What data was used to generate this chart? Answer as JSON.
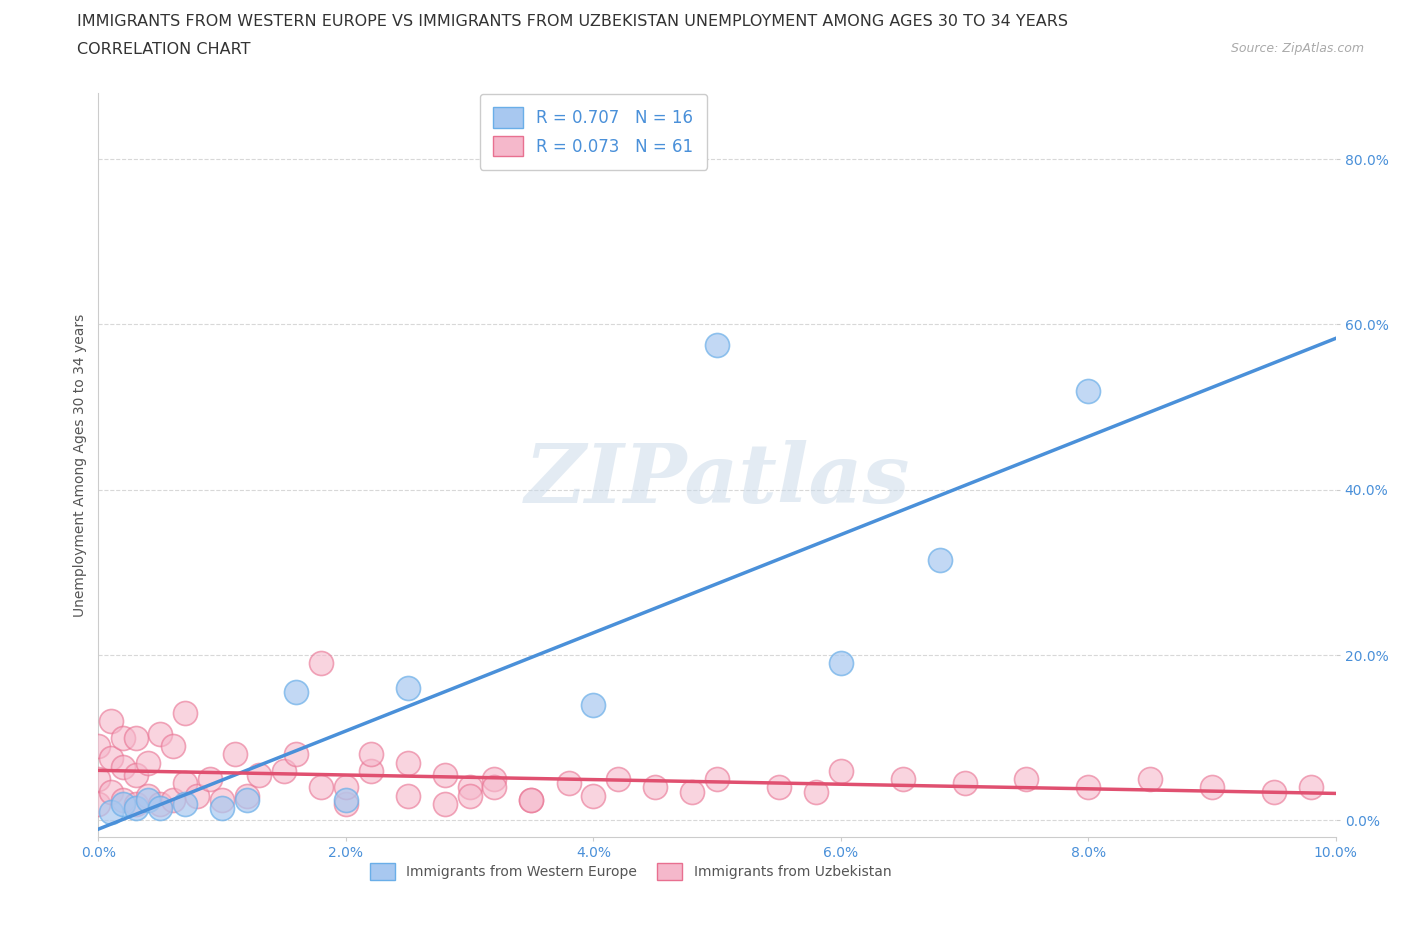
{
  "title_line1": "IMMIGRANTS FROM WESTERN EUROPE VS IMMIGRANTS FROM UZBEKISTAN UNEMPLOYMENT AMONG AGES 30 TO 34 YEARS",
  "title_line2": "CORRELATION CHART",
  "source": "Source: ZipAtlas.com",
  "ylabel": "Unemployment Among Ages 30 to 34 years",
  "watermark": "ZIPatlas",
  "blue_R": 0.707,
  "blue_N": 16,
  "pink_R": 0.073,
  "pink_N": 61,
  "blue_color": "#a8c8f0",
  "pink_color": "#f5b8cb",
  "blue_edge_color": "#6aaee8",
  "pink_edge_color": "#e87090",
  "blue_line_color": "#4a90d9",
  "pink_line_color": "#e05070",
  "background_color": "#ffffff",
  "grid_color": "#d8d8d8",
  "xlim": [
    0.0,
    0.1
  ],
  "ylim": [
    -0.02,
    0.88
  ],
  "xtick_vals": [
    0.0,
    0.02,
    0.04,
    0.06,
    0.08,
    0.1
  ],
  "xtick_labels": [
    "0.0%",
    "2.0%",
    "4.0%",
    "6.0%",
    "8.0%",
    "10.0%"
  ],
  "ytick_vals": [
    0.0,
    0.2,
    0.4,
    0.6,
    0.8
  ],
  "ytick_labels": [
    "0.0%",
    "20.0%",
    "40.0%",
    "60.0%",
    "80.0%"
  ],
  "blue_scatter_x": [
    0.001,
    0.002,
    0.003,
    0.004,
    0.005,
    0.007,
    0.01,
    0.012,
    0.016,
    0.02,
    0.025,
    0.04,
    0.05,
    0.06,
    0.068,
    0.08
  ],
  "blue_scatter_y": [
    0.01,
    0.02,
    0.015,
    0.025,
    0.015,
    0.02,
    0.015,
    0.025,
    0.155,
    0.025,
    0.16,
    0.14,
    0.575,
    0.19,
    0.315,
    0.52
  ],
  "pink_scatter_x": [
    0.0,
    0.0,
    0.0,
    0.001,
    0.001,
    0.001,
    0.002,
    0.002,
    0.002,
    0.003,
    0.003,
    0.003,
    0.004,
    0.004,
    0.005,
    0.005,
    0.006,
    0.006,
    0.007,
    0.007,
    0.008,
    0.009,
    0.01,
    0.011,
    0.012,
    0.013,
    0.015,
    0.016,
    0.018,
    0.02,
    0.022,
    0.025,
    0.028,
    0.03,
    0.032,
    0.035,
    0.038,
    0.04,
    0.042,
    0.045,
    0.048,
    0.05,
    0.055,
    0.058,
    0.06,
    0.065,
    0.07,
    0.075,
    0.08,
    0.085,
    0.09,
    0.095,
    0.098,
    0.022,
    0.028,
    0.03,
    0.032,
    0.018,
    0.02,
    0.025,
    0.035
  ],
  "pink_scatter_y": [
    0.02,
    0.05,
    0.09,
    0.035,
    0.075,
    0.12,
    0.025,
    0.065,
    0.1,
    0.02,
    0.055,
    0.1,
    0.03,
    0.07,
    0.02,
    0.105,
    0.025,
    0.09,
    0.045,
    0.13,
    0.03,
    0.05,
    0.025,
    0.08,
    0.03,
    0.055,
    0.06,
    0.08,
    0.04,
    0.02,
    0.06,
    0.03,
    0.055,
    0.04,
    0.05,
    0.025,
    0.045,
    0.03,
    0.05,
    0.04,
    0.035,
    0.05,
    0.04,
    0.035,
    0.06,
    0.05,
    0.045,
    0.05,
    0.04,
    0.05,
    0.04,
    0.035,
    0.04,
    0.08,
    0.02,
    0.03,
    0.04,
    0.19,
    0.04,
    0.07,
    0.025
  ],
  "legend_label_blue": "Immigrants from Western Europe",
  "legend_label_pink": "Immigrants from Uzbekistan",
  "title_fontsize": 11.5,
  "subtitle_fontsize": 11.5,
  "axis_fontsize": 10,
  "tick_fontsize": 10,
  "legend_fontsize": 12,
  "source_fontsize": 9
}
